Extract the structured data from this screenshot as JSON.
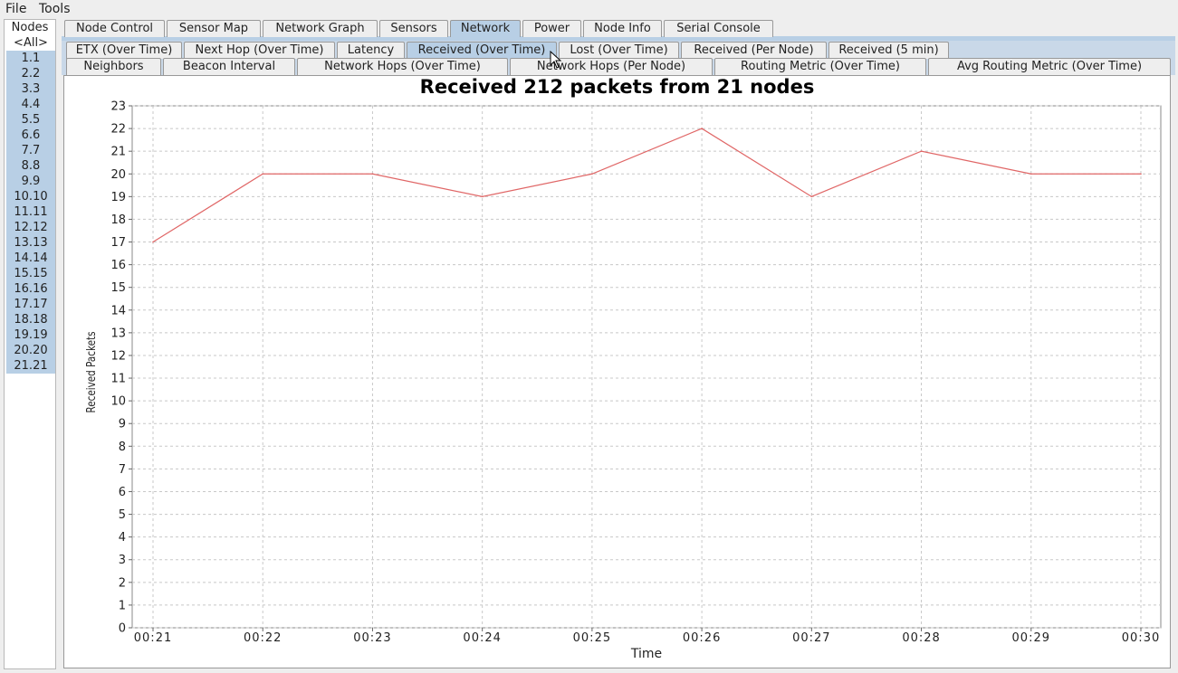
{
  "menu": {
    "file": "File",
    "tools": "Tools"
  },
  "nodes": {
    "title": "Nodes",
    "items": [
      "<All>",
      "1.1",
      "2.2",
      "3.3",
      "4.4",
      "5.5",
      "6.6",
      "7.7",
      "8.8",
      "9.9",
      "10.10",
      "11.11",
      "12.12",
      "13.13",
      "14.14",
      "15.15",
      "16.16",
      "17.17",
      "18.18",
      "19.19",
      "20.20",
      "21.21"
    ]
  },
  "main_tabs": [
    "Node Control",
    "Sensor Map",
    "Network Graph",
    "Sensors",
    "Network",
    "Power",
    "Node Info",
    "Serial Console"
  ],
  "main_tabs_active": "Network",
  "sub_tabs_row1": [
    "ETX (Over Time)",
    "Next Hop (Over Time)",
    "Latency",
    "Received (Over Time)",
    "Lost (Over Time)",
    "Received (Per Node)",
    "Received (5 min)"
  ],
  "sub_tabs_row2": [
    "Neighbors",
    "Beacon Interval",
    "Network Hops (Over Time)",
    "Network Hops (Per Node)",
    "Routing Metric (Over Time)",
    "Avg Routing Metric (Over Time)"
  ],
  "sub_tabs_active": "Received (Over Time)",
  "colors": {
    "tab_selected": "#b8cfe5",
    "series": "#e06666",
    "grid": "#c8c8c8"
  },
  "chart_data": {
    "type": "line",
    "title": "Received 212 packets from 21 nodes",
    "xlabel": "Time",
    "ylabel": "Received Packets",
    "x": [
      "00:21",
      "00:22",
      "00:23",
      "00:24",
      "00:25",
      "00:26",
      "00:27",
      "00:28",
      "00:29",
      "00:30"
    ],
    "series": [
      {
        "values": [
          17,
          20,
          20,
          19,
          20,
          22,
          19,
          21,
          20,
          20
        ]
      }
    ],
    "ylim": [
      0,
      23
    ],
    "yticks": [
      0,
      1,
      2,
      3,
      4,
      5,
      6,
      7,
      8,
      9,
      10,
      11,
      12,
      13,
      14,
      15,
      16,
      17,
      18,
      19,
      20,
      21,
      22,
      23
    ],
    "grid": true,
    "legend": "none"
  }
}
